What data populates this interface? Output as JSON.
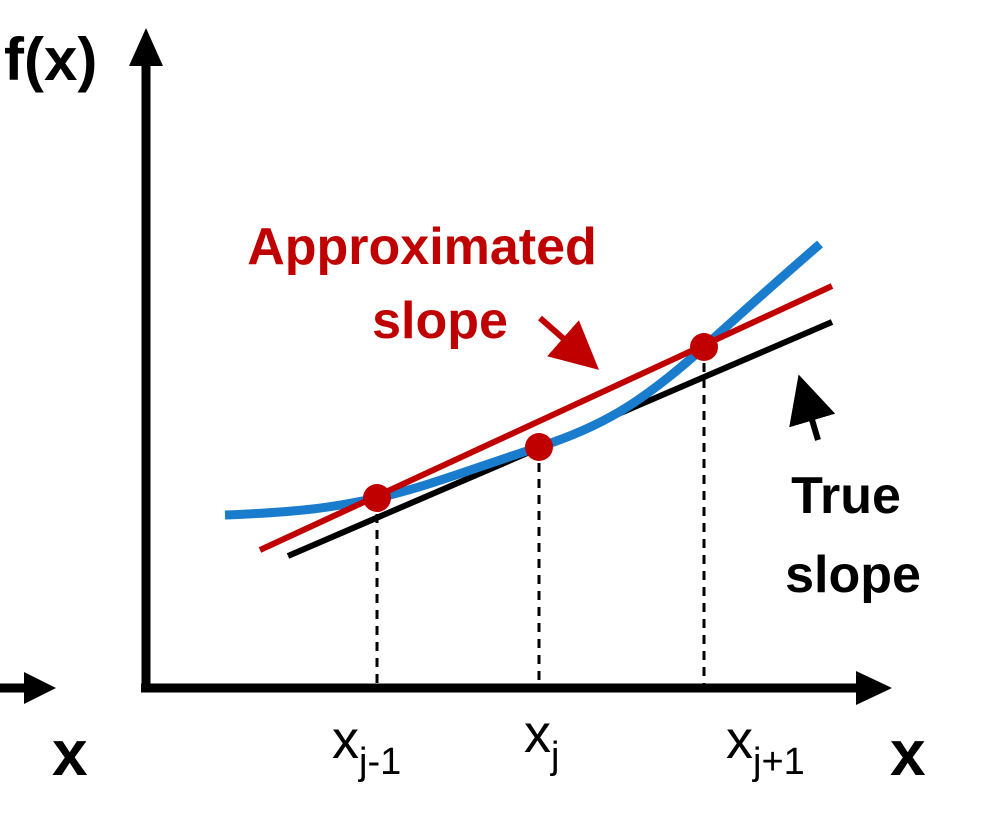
{
  "axes": {
    "y_label": "f(x)",
    "x_label": "x",
    "x_label_left": "x"
  },
  "ticks": [
    {
      "base": "x",
      "sub": "j-1"
    },
    {
      "base": "x",
      "sub": "j"
    },
    {
      "base": "x",
      "sub": "j+1"
    }
  ],
  "annotations": {
    "approx_line1": "Approximated",
    "approx_line2": "slope",
    "true_line1": "True",
    "true_line2": "slope"
  },
  "colors": {
    "axis": "#000000",
    "curve": "#1a7ccc",
    "approx": "#c00000",
    "true": "#000000",
    "points": "#c00000"
  }
}
